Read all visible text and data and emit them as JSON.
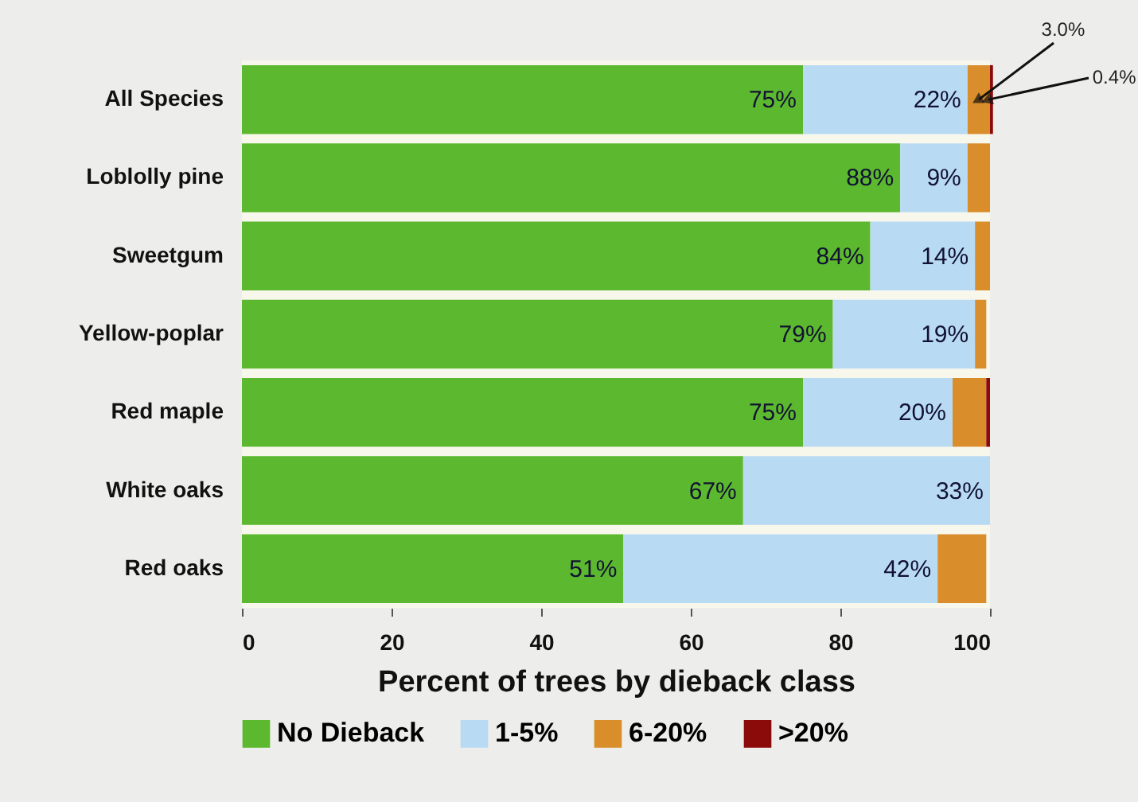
{
  "chart_data": {
    "type": "bar",
    "orientation": "horizontal",
    "stacked": true,
    "categories": [
      "All Species",
      "Loblolly pine",
      "Sweetgum",
      "Yellow-poplar",
      "Red maple",
      "White oaks",
      "Red oaks"
    ],
    "series": [
      {
        "name": "No Dieback",
        "color": "#5cb82e",
        "values": [
          75,
          88,
          84,
          79,
          75,
          67,
          51
        ],
        "value_labels": [
          "75%",
          "88%",
          "84%",
          "79%",
          "75%",
          "67%",
          "51%"
        ]
      },
      {
        "name": "1-5%",
        "color": "#b9daf3",
        "values": [
          22,
          9,
          14,
          19,
          20,
          33,
          42
        ],
        "value_labels": [
          "22%",
          "9%",
          "14%",
          "19%",
          "20%",
          "33%",
          "42%"
        ]
      },
      {
        "name": "6-20%",
        "color": "#d98e2b",
        "values": [
          3.0,
          3,
          2,
          1.5,
          4.5,
          0,
          6.5
        ]
      },
      {
        "name": ">20%",
        "color": "#8b0a0a",
        "values": [
          0.4,
          0,
          0,
          0,
          0.5,
          0,
          0
        ]
      }
    ],
    "xlim": [
      0,
      100
    ],
    "xticks": [
      0,
      20,
      40,
      60,
      80,
      100
    ],
    "xlabel": "Percent of trees by dieback class",
    "annotations": [
      {
        "text": "3.0%",
        "x": 98.5,
        "y": "All Species"
      },
      {
        "text": "0.4%",
        "x": 99.8,
        "y": "All Species"
      }
    ],
    "grid": false,
    "legend": "bottom"
  }
}
